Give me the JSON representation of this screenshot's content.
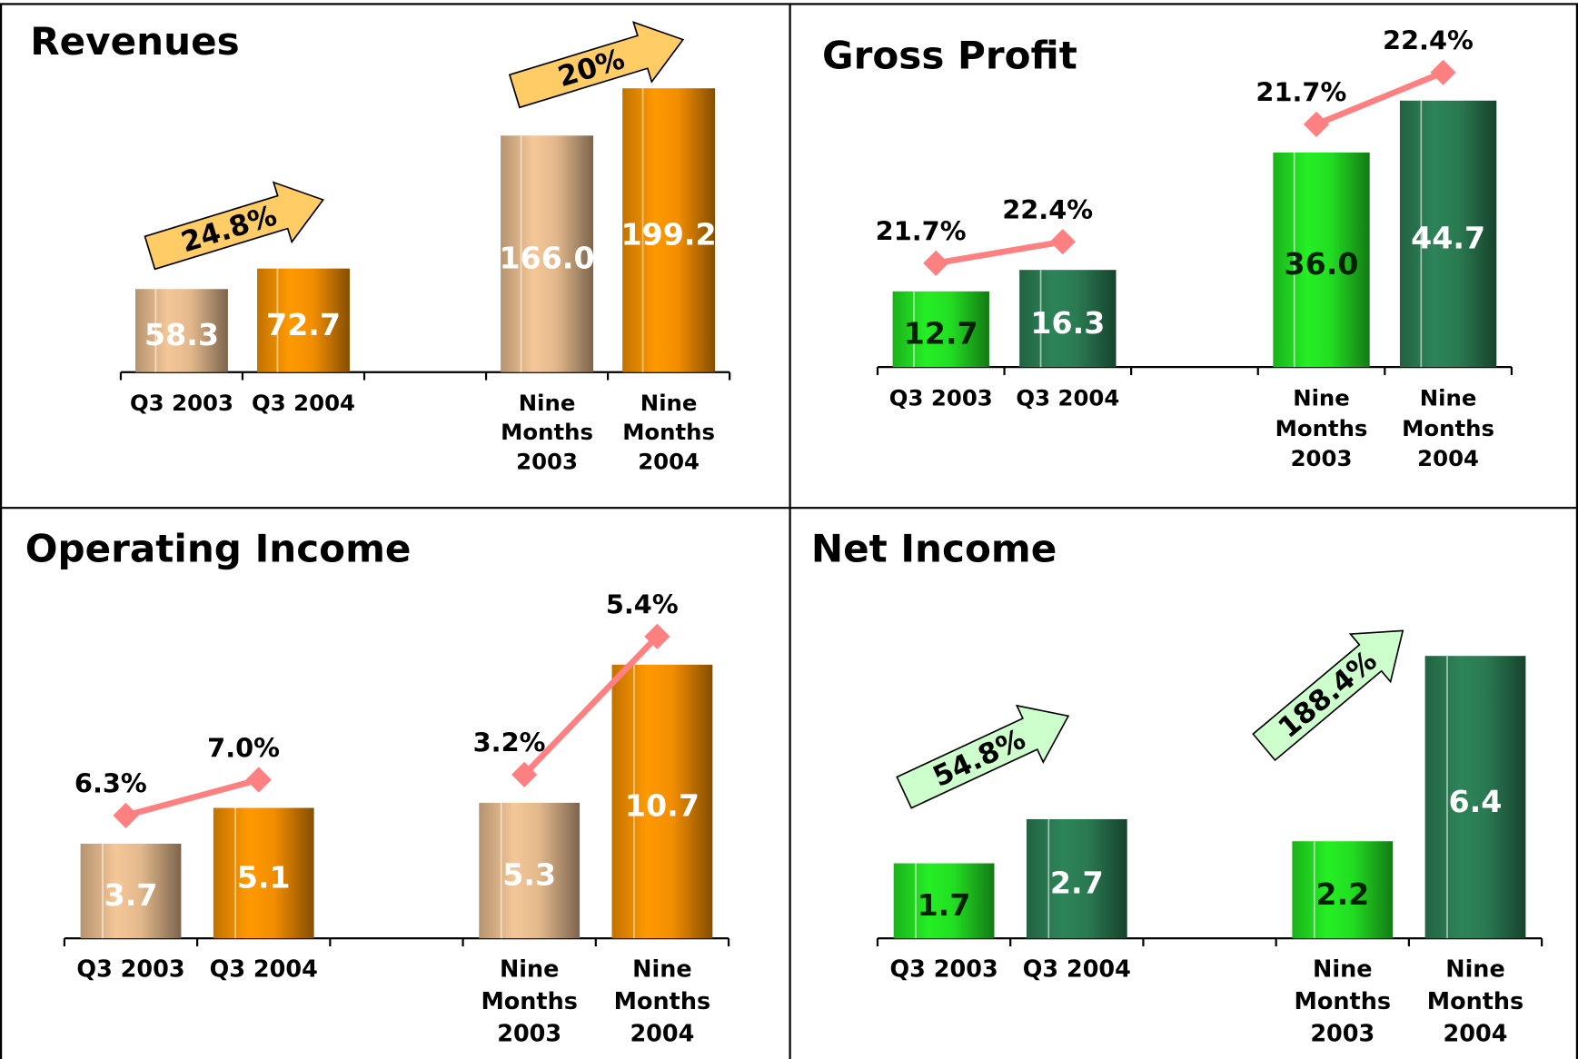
{
  "chart_data": [
    {
      "type": "bar",
      "title": "Revenues",
      "categories": [
        "Q3 2003",
        "Q3 2004",
        null,
        "Nine Months 2003",
        "Nine Months 2004"
      ],
      "values": [
        58.3,
        72.7,
        null,
        166.0,
        199.2
      ],
      "value_labels": [
        "58.3",
        "72.7",
        null,
        "166.0",
        "199.2"
      ],
      "colors": [
        "#e2b88c",
        "#f28e00",
        null,
        "#e2b88c",
        "#f28e00"
      ],
      "label_colors": [
        "#ffffff",
        "#ffffff",
        null,
        "#ffffff",
        "#ffffff"
      ],
      "ylim": [
        0,
        240
      ],
      "annotations": [
        "24.8%",
        "20%"
      ],
      "annotation_color": "#ffcc66"
    },
    {
      "type": "bar",
      "title": "Gross Profit",
      "categories": [
        "Q3 2003",
        "Q3 2004",
        null,
        "Nine Months 2003",
        "Nine Months 2004"
      ],
      "values": [
        12.7,
        16.3,
        null,
        36.0,
        44.7
      ],
      "value_labels": [
        "12.7",
        "16.3",
        null,
        "36.0",
        "44.7"
      ],
      "colors": [
        "#22dd22",
        "#2a7a52",
        null,
        "#22dd22",
        "#2a7a52"
      ],
      "label_colors": [
        "#002200",
        "#ffffff",
        null,
        "#002200",
        "#ffffff"
      ],
      "ylim": [
        0,
        55
      ],
      "margins": [
        21.7,
        22.4,
        null,
        21.7,
        22.4
      ],
      "margin_labels": [
        "21.7%",
        "22.4%",
        null,
        "21.7%",
        "22.4%"
      ],
      "margin_color": "#ff8080"
    },
    {
      "type": "bar",
      "title": "Operating Income",
      "categories": [
        "Q3 2003",
        "Q3 2004",
        null,
        "Nine Months 2003",
        "Nine Months 2004"
      ],
      "values": [
        3.7,
        5.1,
        null,
        5.3,
        10.7
      ],
      "value_labels": [
        "3.7",
        "5.1",
        null,
        "5.3",
        "10.7"
      ],
      "colors": [
        "#e2b88c",
        "#f28e00",
        null,
        "#e2b88c",
        "#f28e00"
      ],
      "label_colors": [
        "#ffffff",
        "#ffffff",
        null,
        "#ffffff",
        "#ffffff"
      ],
      "ylim": [
        0,
        14
      ],
      "margins": [
        6.3,
        7.0,
        null,
        3.2,
        5.4
      ],
      "margin_labels": [
        "6.3%",
        "7.0%",
        null,
        "3.2%",
        "5.4%"
      ],
      "margin_color": "#ff8080"
    },
    {
      "type": "bar",
      "title": "Net Income",
      "categories": [
        "Q3 2003",
        "Q3 2004",
        null,
        "Nine Months 2003",
        "Nine Months 2004"
      ],
      "values": [
        1.7,
        2.7,
        null,
        2.2,
        6.4
      ],
      "value_labels": [
        "1.7",
        "2.7",
        null,
        "2.2",
        "6.4"
      ],
      "colors": [
        "#22dd22",
        "#2a7a52",
        null,
        "#22dd22",
        "#2a7a52"
      ],
      "label_colors": [
        "#002200",
        "#ffffff",
        null,
        "#002200",
        "#ffffff"
      ],
      "ylim": [
        0,
        8
      ],
      "annotations": [
        "54.8%",
        "188.4%"
      ],
      "annotation_color": "#ccffcc"
    }
  ]
}
